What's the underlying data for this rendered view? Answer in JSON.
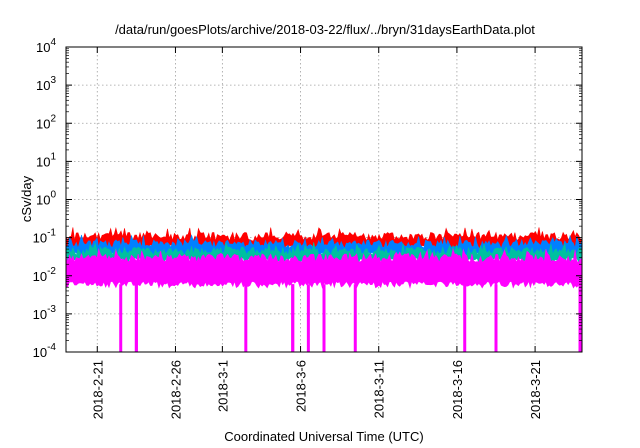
{
  "chart_data": {
    "type": "line",
    "title": "/data/run/goesPlots/archive/2018-03-22/flux/../bryn/31daysEarthData.plot",
    "xlabel": "Coordinated Universal Time (UTC)",
    "ylabel": "cSv/day",
    "y_scale": "log",
    "ylim": [
      0.0001,
      10000
    ],
    "xlim": [
      "2018-02-19",
      "2018-03-24"
    ],
    "grid": true,
    "x_ticks": [
      "2018-2-21",
      "2018-2-26",
      "2018-3-1",
      "2018-3-6",
      "2018-3-11",
      "2018-3-16",
      "2018-3-21"
    ],
    "y_ticks": [
      {
        "base": "10",
        "exp": "-4"
      },
      {
        "base": "10",
        "exp": "-3"
      },
      {
        "base": "10",
        "exp": "-2"
      },
      {
        "base": "10",
        "exp": "-1"
      },
      {
        "base": "10",
        "exp": "0"
      },
      {
        "base": "10",
        "exp": "1"
      },
      {
        "base": "10",
        "exp": "2"
      },
      {
        "base": "10",
        "exp": "3"
      },
      {
        "base": "10",
        "exp": "4"
      }
    ],
    "series": [
      {
        "color": "#ff0000",
        "typical": 0.08,
        "low": 0.055,
        "high": 0.11
      },
      {
        "color": "#0080ff",
        "typical": 0.05,
        "low": 0.035,
        "high": 0.07
      },
      {
        "color": "#00c0a0",
        "typical": 0.035,
        "low": 0.025,
        "high": 0.045
      },
      {
        "color": "#ff00ff",
        "typical": 0.015,
        "low": 0.006,
        "high": 0.03
      }
    ],
    "dropouts": [
      "2018-02-22",
      "2018-02-23",
      "2018-02-23",
      "2018-03-02",
      "2018-03-05",
      "2018-03-05",
      "2018-03-06",
      "2018-03-07",
      "2018-03-09",
      "2018-03-16",
      "2018-03-18",
      "2018-03-24"
    ],
    "dropout_min": 0.0001
  }
}
